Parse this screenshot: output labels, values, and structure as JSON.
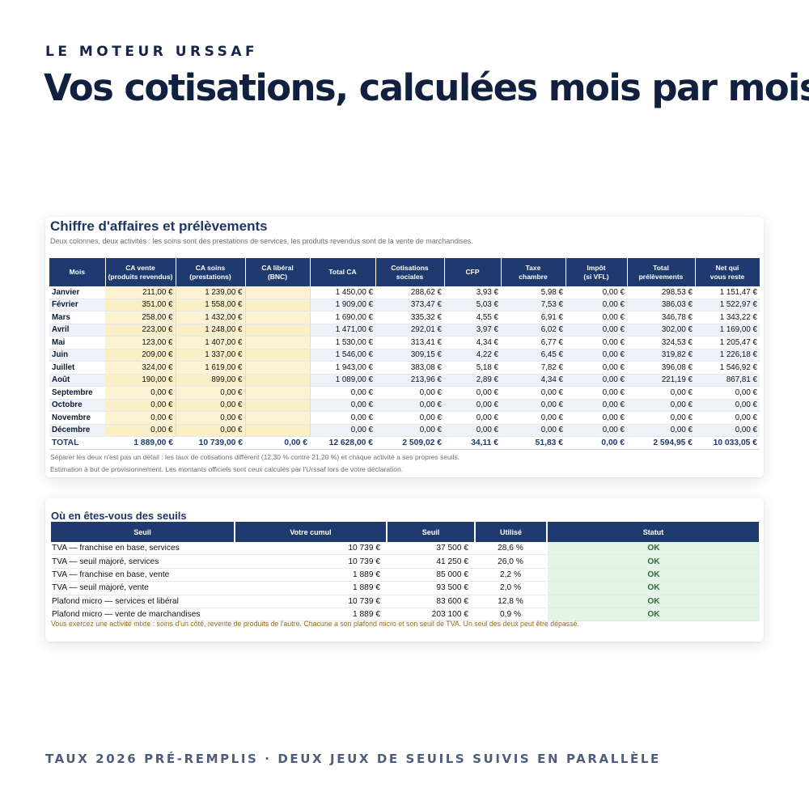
{
  "eyebrow": "LE MOTEUR URSSAF",
  "headline": "Vos cotisations, calculées mois par mois",
  "footer": "TAUX 2026 PRÉ-REMPLIS · DEUX JEUX DE SEUILS SUIVIS EN PARALLÈLE",
  "card1": {
    "title": "Chiffre d'affaires et prélèvements",
    "subtitle": "Deux colonnes, deux activités : les soins sont des prestations de services, les produits revendus sont de la vente de marchandises.",
    "headers": [
      "Mois",
      "CA vente\n(produits revendus)",
      "CA soins\n(prestations)",
      "CA libéral\n(BNC)",
      "Total CA",
      "Cotisations\nsociales",
      "CFP",
      "Taxe\nchambre",
      "Impôt\n(si VFL)",
      "Total\nprélèvements",
      "Net qui\nvous reste"
    ],
    "rows": [
      [
        "Janvier",
        "211,00 €",
        "1 239,00 €",
        "",
        "1 450,00 €",
        "288,62 €",
        "3,93 €",
        "5,98 €",
        "0,00 €",
        "298,53 €",
        "1 151,47 €"
      ],
      [
        "Février",
        "351,00 €",
        "1 558,00 €",
        "",
        "1 909,00 €",
        "373,47 €",
        "5,03 €",
        "7,53 €",
        "0,00 €",
        "386,03 €",
        "1 522,97 €"
      ],
      [
        "Mars",
        "258,00 €",
        "1 432,00 €",
        "",
        "1 690,00 €",
        "335,32 €",
        "4,55 €",
        "6,91 €",
        "0,00 €",
        "346,78 €",
        "1 343,22 €"
      ],
      [
        "Avril",
        "223,00 €",
        "1 248,00 €",
        "",
        "1 471,00 €",
        "292,01 €",
        "3,97 €",
        "6,02 €",
        "0,00 €",
        "302,00 €",
        "1 169,00 €"
      ],
      [
        "Mai",
        "123,00 €",
        "1 407,00 €",
        "",
        "1 530,00 €",
        "313,41 €",
        "4,34 €",
        "6,77 €",
        "0,00 €",
        "324,53 €",
        "1 205,47 €"
      ],
      [
        "Juin",
        "209,00 €",
        "1 337,00 €",
        "",
        "1 546,00 €",
        "309,15 €",
        "4,22 €",
        "6,45 €",
        "0,00 €",
        "319,82 €",
        "1 226,18 €"
      ],
      [
        "Juillet",
        "324,00 €",
        "1 619,00 €",
        "",
        "1 943,00 €",
        "383,08 €",
        "5,18 €",
        "7,82 €",
        "0,00 €",
        "396,08 €",
        "1 546,92 €"
      ],
      [
        "Août",
        "190,00 €",
        "899,00 €",
        "",
        "1 089,00 €",
        "213,96 €",
        "2,89 €",
        "4,34 €",
        "0,00 €",
        "221,19 €",
        "867,81 €"
      ],
      [
        "Septembre",
        "0,00 €",
        "0,00 €",
        "",
        "0,00 €",
        "0,00 €",
        "0,00 €",
        "0,00 €",
        "0,00 €",
        "0,00 €",
        "0,00 €"
      ],
      [
        "Octobre",
        "0,00 €",
        "0,00 €",
        "",
        "0,00 €",
        "0,00 €",
        "0,00 €",
        "0,00 €",
        "0,00 €",
        "0,00 €",
        "0,00 €"
      ],
      [
        "Novembre",
        "0,00 €",
        "0,00 €",
        "",
        "0,00 €",
        "0,00 €",
        "0,00 €",
        "0,00 €",
        "0,00 €",
        "0,00 €",
        "0,00 €"
      ],
      [
        "Décembre",
        "0,00 €",
        "0,00 €",
        "",
        "0,00 €",
        "0,00 €",
        "0,00 €",
        "0,00 €",
        "0,00 €",
        "0,00 €",
        "0,00 €"
      ]
    ],
    "total": [
      "TOTAL",
      "1 889,00 €",
      "10 739,00 €",
      "0,00 €",
      "12 628,00 €",
      "2 509,02 €",
      "34,11 €",
      "51,83 €",
      "0,00 €",
      "2 594,95 €",
      "10 033,05 €"
    ],
    "notes": [
      "Séparer les deux n'est pas un détail : les taux de cotisations diffèrent (12,30 % contre 21,20 %) et chaque activité a ses propres seuils.",
      "Estimation à but de provisionnement. Les montants officiels sont ceux calculés par l'Urssaf lors de votre déclaration."
    ]
  },
  "card2": {
    "title": "Où en êtes-vous des seuils",
    "headers": [
      "Seuil",
      "Votre cumul",
      "Seuil",
      "Utilisé",
      "Statut"
    ],
    "rows": [
      [
        "TVA — franchise en base, services",
        "10 739 €",
        "37 500 €",
        "28,6 %",
        "OK"
      ],
      [
        "TVA — seuil majoré, services",
        "10 739 €",
        "41 250 €",
        "26,0 %",
        "OK"
      ],
      [
        "TVA — franchise en base, vente",
        "1 889 €",
        "85 000 €",
        "2,2 %",
        "OK"
      ],
      [
        "TVA — seuil majoré, vente",
        "1 889 €",
        "93 500 €",
        "2,0 %",
        "OK"
      ],
      [
        "Plafond micro — services et libéral",
        "10 739 €",
        "83 600 €",
        "12,8 %",
        "OK"
      ],
      [
        "Plafond micro — vente de marchandises",
        "1 889 €",
        "203 100 €",
        "0,9 %",
        "OK"
      ]
    ],
    "note": "Vous exercez une activité mixte : soins d'un côté, revente de produits de l'autre. Chacune a son plafond micro et son seuil de TVA. Un seul des deux peut être dépassé."
  }
}
